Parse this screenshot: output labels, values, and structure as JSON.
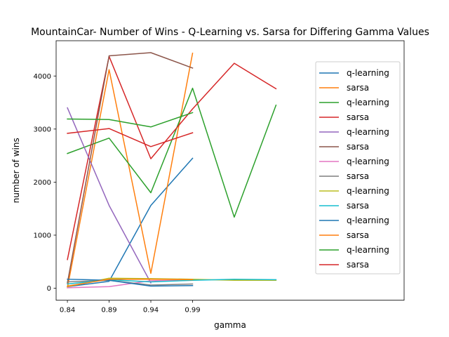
{
  "chart_data": {
    "type": "line",
    "title": "MountainCar- Number of Wins - Q-Learning vs. Sarsa for Differing Gamma Values",
    "xlabel": "gamma",
    "ylabel": "number of wins",
    "x_ticks": [
      {
        "value": 0.84,
        "label": "0.84"
      },
      {
        "value": 0.89,
        "label": "0.89"
      },
      {
        "value": 0.94,
        "label": "0.94"
      },
      {
        "value": 0.99,
        "label": "0.99"
      }
    ],
    "y_ticks": [
      {
        "value": 0,
        "label": "0"
      },
      {
        "value": 1000,
        "label": "1000"
      },
      {
        "value": 2000,
        "label": "2000"
      },
      {
        "value": 3000,
        "label": "3000"
      },
      {
        "value": 4000,
        "label": "4000"
      }
    ],
    "xlim": [
      0.8265,
      1.2435
    ],
    "ylim": [
      -226,
      4665
    ],
    "grid": false,
    "legend_position": "right",
    "series": [
      {
        "name": "q-learning",
        "color": "#1f77b4",
        "points": [
          [
            0.84,
            30
          ],
          [
            0.89,
            130
          ],
          [
            0.94,
            1560
          ],
          [
            0.99,
            2450
          ]
        ]
      },
      {
        "name": "sarsa",
        "color": "#ff7f0e",
        "points": [
          [
            0.84,
            10
          ],
          [
            0.89,
            4120
          ],
          [
            0.94,
            280
          ],
          [
            0.99,
            4430
          ]
        ]
      },
      {
        "name": "q-learning",
        "color": "#2ca02c",
        "points": [
          [
            0.84,
            2540
          ],
          [
            0.89,
            2830
          ],
          [
            0.94,
            1800
          ],
          [
            0.99,
            3770
          ],
          [
            1.04,
            1340
          ],
          [
            1.09,
            3450
          ]
        ]
      },
      {
        "name": "sarsa",
        "color": "#d62728",
        "points": [
          [
            0.84,
            540
          ],
          [
            0.89,
            4370
          ],
          [
            0.94,
            2440
          ],
          [
            0.99,
            3380
          ],
          [
            1.04,
            4240
          ],
          [
            1.09,
            3760
          ]
        ]
      },
      {
        "name": "q-learning",
        "color": "#9467bd",
        "points": [
          [
            0.84,
            3400
          ],
          [
            0.89,
            1560
          ],
          [
            0.94,
            100
          ]
        ]
      },
      {
        "name": "sarsa",
        "color": "#8c564b",
        "points": [
          [
            0.84,
            100
          ],
          [
            0.89,
            4380
          ],
          [
            0.94,
            4440
          ],
          [
            0.99,
            4150
          ]
        ]
      },
      {
        "name": "q-learning",
        "color": "#e377c2",
        "points": [
          [
            0.84,
            10
          ],
          [
            0.89,
            30
          ],
          [
            0.94,
            140
          ],
          [
            0.99,
            150
          ]
        ]
      },
      {
        "name": "sarsa",
        "color": "#7f7f7f",
        "points": [
          [
            0.84,
            120
          ],
          [
            0.89,
            150
          ],
          [
            0.94,
            60
          ],
          [
            0.99,
            80
          ]
        ]
      },
      {
        "name": "q-learning",
        "color": "#bcbd22",
        "points": [
          [
            0.84,
            30
          ],
          [
            0.89,
            190
          ],
          [
            0.94,
            180
          ],
          [
            0.99,
            170
          ],
          [
            1.04,
            150
          ],
          [
            1.09,
            150
          ]
        ]
      },
      {
        "name": "sarsa",
        "color": "#17becf",
        "points": [
          [
            0.84,
            80
          ],
          [
            0.89,
            160
          ],
          [
            0.94,
            120
          ],
          [
            0.99,
            150
          ],
          [
            1.04,
            170
          ],
          [
            1.09,
            160
          ]
        ]
      },
      {
        "name": "q-learning",
        "color": "#1f77b4",
        "points": [
          [
            0.84,
            170
          ],
          [
            0.89,
            150
          ],
          [
            0.94,
            40
          ],
          [
            0.99,
            50
          ]
        ]
      },
      {
        "name": "sarsa",
        "color": "#ff7f0e",
        "points": [
          [
            0.84,
            40
          ],
          [
            0.89,
            170
          ],
          [
            0.94,
            170
          ],
          [
            0.99,
            160
          ]
        ]
      },
      {
        "name": "q-learning",
        "color": "#2ca02c",
        "points": [
          [
            0.84,
            3190
          ],
          [
            0.89,
            3180
          ],
          [
            0.94,
            3040
          ],
          [
            0.99,
            3310
          ]
        ]
      },
      {
        "name": "sarsa",
        "color": "#d62728",
        "points": [
          [
            0.84,
            2920
          ],
          [
            0.89,
            3010
          ],
          [
            0.94,
            2670
          ],
          [
            0.99,
            2930
          ]
        ]
      }
    ]
  }
}
